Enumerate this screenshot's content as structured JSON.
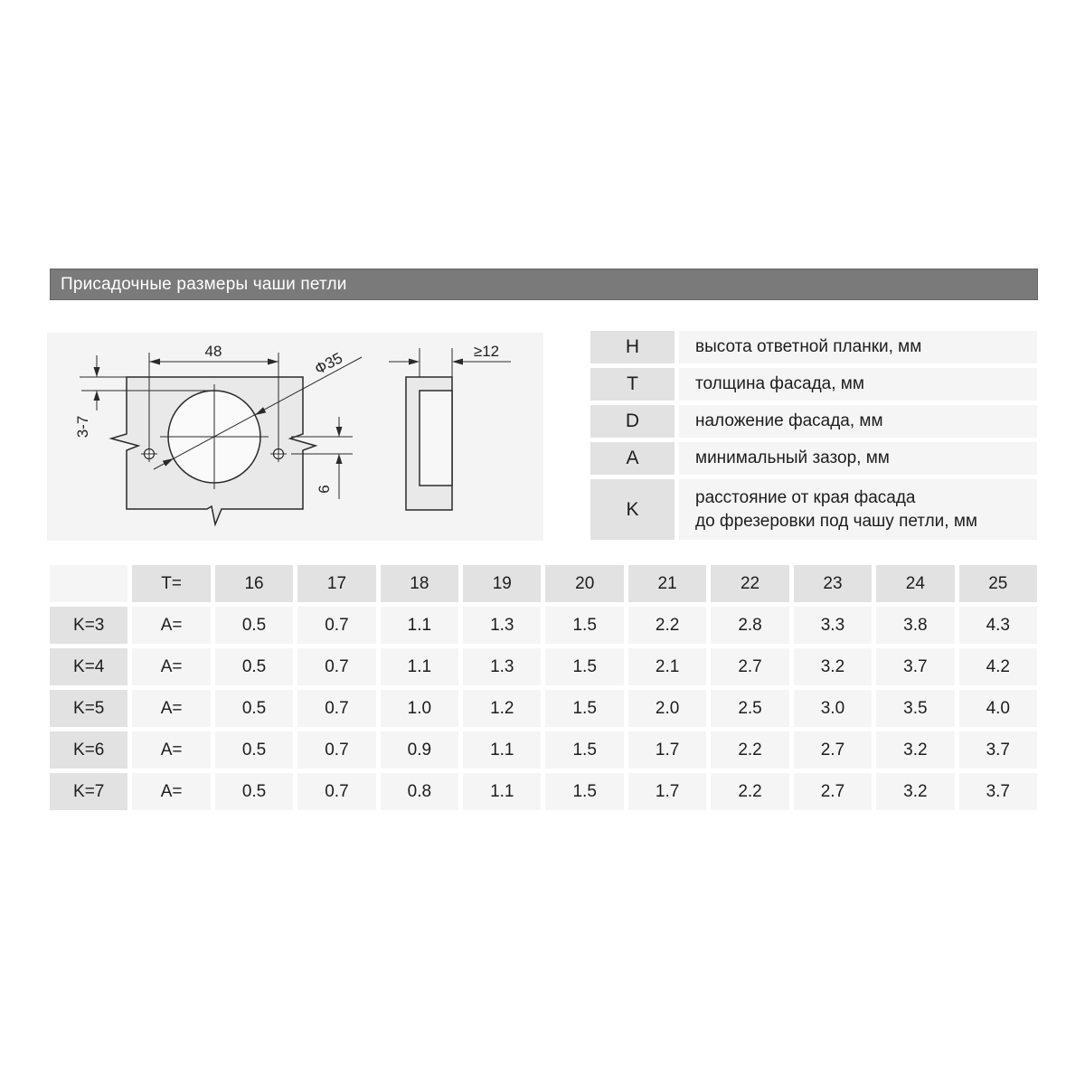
{
  "title": "Присадочные размеры чаши петли",
  "colors": {
    "title_bar": "#7a7a7a",
    "gray_cell": "#e2e2e2",
    "light_cell": "#f5f5f5",
    "drawing_bg": "#f4f4f4",
    "panel_fill": "#e9e9e9",
    "line": "#2a2a2a"
  },
  "drawing": {
    "labels": {
      "hole_spacing": "48",
      "edge_to_cup": "3-7",
      "center_offset": "6",
      "cup_diameter": "Ф35",
      "min_thickness": "≥12"
    }
  },
  "legend": [
    {
      "key": "H",
      "desc": "высота ответной планки, мм"
    },
    {
      "key": "T",
      "desc": "толщина фасада, мм"
    },
    {
      "key": "D",
      "desc": "наложение фасада, мм"
    },
    {
      "key": "A",
      "desc": "минимальный зазор, мм"
    },
    {
      "key": "K",
      "desc": "расстояние от края фасада\nдо фрезеровки под чашу петли, мм"
    }
  ],
  "table": {
    "corner": "",
    "t_label": "T=",
    "t_values": [
      "16",
      "17",
      "18",
      "19",
      "20",
      "21",
      "22",
      "23",
      "24",
      "25"
    ],
    "rows": [
      {
        "k": "K=3",
        "a": "A=",
        "values": [
          "0.5",
          "0.7",
          "1.1",
          "1.3",
          "1.5",
          "2.2",
          "2.8",
          "3.3",
          "3.8",
          "4.3"
        ]
      },
      {
        "k": "K=4",
        "a": "A=",
        "values": [
          "0.5",
          "0.7",
          "1.1",
          "1.3",
          "1.5",
          "2.1",
          "2.7",
          "3.2",
          "3.7",
          "4.2"
        ]
      },
      {
        "k": "K=5",
        "a": "A=",
        "values": [
          "0.5",
          "0.7",
          "1.0",
          "1.2",
          "1.5",
          "2.0",
          "2.5",
          "3.0",
          "3.5",
          "4.0"
        ]
      },
      {
        "k": "K=6",
        "a": "A=",
        "values": [
          "0.5",
          "0.7",
          "0.9",
          "1.1",
          "1.5",
          "1.7",
          "2.2",
          "2.7",
          "3.2",
          "3.7"
        ]
      },
      {
        "k": "K=7",
        "a": "A=",
        "values": [
          "0.5",
          "0.7",
          "0.8",
          "1.1",
          "1.5",
          "1.7",
          "2.2",
          "2.7",
          "3.2",
          "3.7"
        ]
      }
    ]
  }
}
